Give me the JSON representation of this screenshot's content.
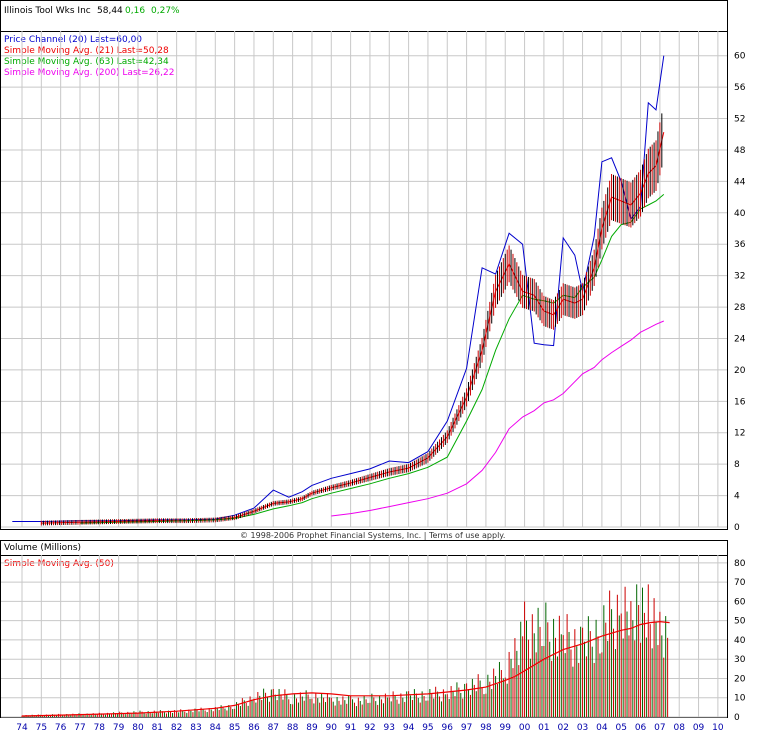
{
  "quote": {
    "name": "Illinois Tool Wks Inc",
    "last": "58,44",
    "change": "0,16",
    "change_pct": "0,27%",
    "change_color": "#00aa00"
  },
  "legend": [
    {
      "text": "Price Channel (20) Last=60,00",
      "color": "#0000cc"
    },
    {
      "text": "Simple Moving Avg. (21) Last=50,28",
      "color": "#ee0000"
    },
    {
      "text": "Simple Moving Avg. (63) Last=42,34",
      "color": "#00aa00"
    },
    {
      "text": "Simple Moving Avg. (200) Last=26,22",
      "color": "#ee00ee"
    }
  ],
  "copyright": "© 1998-2006 Prophet Financial Systems, Inc. | Terms of use apply.",
  "volume": {
    "title": "Volume (Millions)",
    "legend": "Simple Moving Avg. (50)",
    "legend_color": "#ee0000"
  },
  "chart_data": [
    {
      "type": "line",
      "x_tick_labels": [
        "74",
        "75",
        "76",
        "77",
        "78",
        "79",
        "80",
        "81",
        "82",
        "83",
        "84",
        "85",
        "86",
        "87",
        "88",
        "89",
        "90",
        "91",
        "92",
        "93",
        "94",
        "95",
        "96",
        "97",
        "98",
        "99",
        "00",
        "01",
        "02",
        "03",
        "04",
        "05",
        "06",
        "07",
        "08",
        "09",
        "10"
      ],
      "y_ticks": [
        0,
        4,
        8,
        12,
        16,
        20,
        24,
        28,
        32,
        36,
        40,
        44,
        48,
        52,
        56,
        60
      ],
      "ylim": [
        0,
        62
      ],
      "x": [
        1973.5,
        1975,
        1977,
        1979,
        1981,
        1982.5,
        1984,
        1985,
        1986,
        1987,
        1987.8,
        1988.5,
        1989,
        1990,
        1991,
        1992,
        1993,
        1994,
        1995,
        1996,
        1997,
        1997.8,
        1998.5,
        1999.2,
        1999.9,
        2000.5,
        2001,
        2001.5,
        2002,
        2002.6,
        2003,
        2003.6,
        2004,
        2004.5,
        2005,
        2005.5,
        2006,
        2006.4,
        2006.8,
        2007.2
      ],
      "series": [
        {
          "name": "Price Channel (20)",
          "color": "#0000cc",
          "values": [
            0.7,
            0.7,
            0.8,
            0.8,
            0.9,
            0.9,
            1.0,
            1.5,
            2.4,
            4.7,
            3.8,
            4.5,
            5.3,
            6.2,
            6.8,
            7.4,
            8.4,
            8.2,
            9.6,
            13.5,
            20.2,
            33.0,
            32.2,
            37.4,
            36.0,
            23.4,
            23.2,
            23.1,
            36.8,
            34.6,
            30.0,
            37.0,
            46.5,
            47.0,
            44.0,
            39.2,
            40.8,
            54.0,
            53.1,
            60.0
          ]
        },
        {
          "name": "Simple Moving Avg. (21)",
          "color": "#ee0000",
          "values": [
            null,
            0.5,
            0.6,
            0.7,
            0.8,
            0.8,
            0.9,
            1.2,
            2.0,
            3.0,
            3.2,
            3.6,
            4.3,
            5.0,
            5.6,
            6.3,
            7.0,
            7.5,
            8.8,
            11.5,
            16.5,
            22.5,
            30.0,
            33.5,
            30.0,
            29.5,
            27.5,
            27.0,
            29.0,
            28.5,
            29.0,
            33.0,
            38.0,
            42.0,
            41.5,
            41.0,
            42.5,
            45.0,
            46.0,
            50.28
          ]
        },
        {
          "name": "Simple Moving Avg. (63)",
          "color": "#00aa00",
          "values": [
            null,
            null,
            0.5,
            0.6,
            0.7,
            0.8,
            0.9,
            1.1,
            1.6,
            2.3,
            2.7,
            3.1,
            3.6,
            4.3,
            4.9,
            5.5,
            6.2,
            6.8,
            7.6,
            8.9,
            13.5,
            17.5,
            22.5,
            26.5,
            29.5,
            29.0,
            28.8,
            28.5,
            29.5,
            29.2,
            30.5,
            31.8,
            34.0,
            37.0,
            38.5,
            38.8,
            40.5,
            41.0,
            41.5,
            42.34
          ]
        },
        {
          "name": "Simple Moving Avg. (200)",
          "color": "#ee00ee",
          "values": [
            null,
            null,
            null,
            null,
            null,
            null,
            null,
            null,
            null,
            null,
            null,
            null,
            null,
            1.4,
            1.7,
            2.1,
            2.6,
            3.1,
            3.6,
            4.3,
            5.5,
            7.2,
            9.5,
            12.5,
            14.0,
            14.8,
            15.8,
            16.2,
            17.0,
            18.5,
            19.5,
            20.3,
            21.3,
            22.2,
            23.0,
            23.8,
            24.8,
            25.3,
            25.8,
            26.22
          ]
        }
      ]
    },
    {
      "type": "bar",
      "title": "Volume (Millions)",
      "x_tick_labels": [
        "74",
        "75",
        "76",
        "77",
        "78",
        "79",
        "80",
        "81",
        "82",
        "83",
        "84",
        "85",
        "86",
        "87",
        "88",
        "89",
        "90",
        "91",
        "92",
        "93",
        "94",
        "95",
        "96",
        "97",
        "98",
        "99",
        "00",
        "01",
        "02",
        "03",
        "04",
        "05",
        "06",
        "07",
        "08",
        "09",
        "10"
      ],
      "y_ticks": [
        0,
        10,
        20,
        30,
        40,
        50,
        60,
        70,
        80
      ],
      "ylim": [
        0,
        82
      ],
      "x": [
        1974,
        1976,
        1978,
        1980,
        1982,
        1984,
        1985,
        1986,
        1987,
        1988,
        1989,
        1990,
        1991,
        1992,
        1993,
        1994,
        1995,
        1996,
        1997,
        1998,
        1999,
        1999.5,
        2000,
        2001,
        2002,
        2003,
        2004,
        2005,
        2005.5,
        2006,
        2006.5,
        2007,
        2007.5
      ],
      "series": [
        {
          "name": "Volume",
          "values": [
            1,
            1.5,
            2,
            3,
            3.5,
            5,
            7,
            12,
            15,
            12,
            13,
            11,
            10,
            11,
            12,
            13,
            14,
            15,
            18,
            22,
            28,
            45,
            55,
            55,
            50,
            45,
            55,
            68,
            62,
            70,
            66,
            60,
            50
          ]
        },
        {
          "name": "Simple Moving Avg. (50)",
          "color": "#ee0000",
          "values": [
            0.5,
            1,
            1.5,
            2,
            3,
            4.5,
            6,
            9,
            11,
            12,
            12.5,
            12,
            11,
            11,
            11,
            11.5,
            12,
            13,
            14,
            15.5,
            19,
            21,
            24,
            30,
            35,
            38,
            42,
            45,
            46,
            48,
            49,
            49.5,
            49
          ]
        }
      ]
    }
  ]
}
